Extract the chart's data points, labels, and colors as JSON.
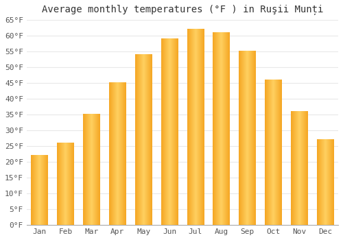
{
  "title": "Average monthly temperatures (°F ) in Ruşii Munți",
  "months": [
    "Jan",
    "Feb",
    "Mar",
    "Apr",
    "May",
    "Jun",
    "Jul",
    "Aug",
    "Sep",
    "Oct",
    "Nov",
    "Dec"
  ],
  "values": [
    22,
    26,
    35,
    45,
    54,
    59,
    62,
    61,
    55,
    46,
    36,
    27
  ],
  "bar_color_left": "#F5A623",
  "bar_color_center": "#FFD060",
  "bar_color_right": "#F5A623",
  "ylim_min": 0,
  "ylim_max": 65,
  "ytick_step": 5,
  "background_color": "#ffffff",
  "plot_bg_color": "#ffffff",
  "grid_color": "#e8e8e8",
  "title_fontsize": 10,
  "tick_fontsize": 8
}
